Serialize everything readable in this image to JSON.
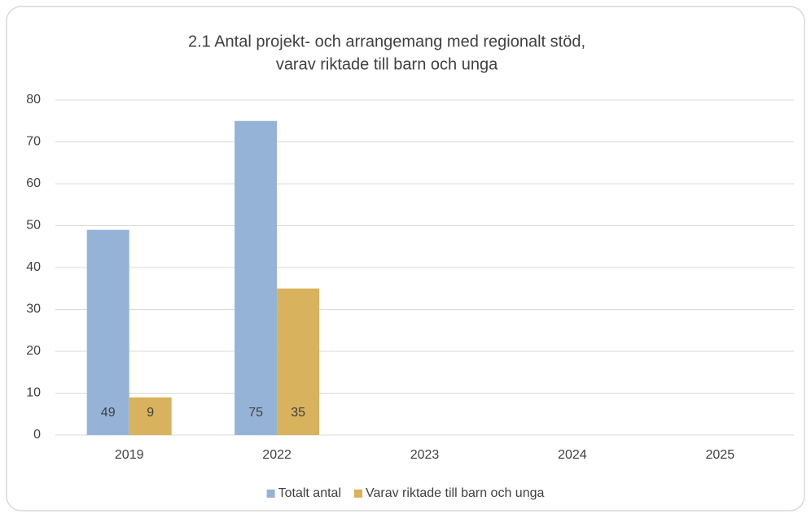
{
  "chart_data": {
    "type": "bar",
    "title": [
      "2.1 Antal projekt- och arrangemang med regionalt stöd,",
      "varav riktade till barn och unga"
    ],
    "categories": [
      "2019",
      "2022",
      "2023",
      "2024",
      "2025"
    ],
    "series": [
      {
        "name": "Totalt antal",
        "color": "#95b3d7",
        "values": [
          49,
          75,
          null,
          null,
          null
        ]
      },
      {
        "name": "Varav riktade till barn och unga",
        "color": "#d8b25c",
        "values": [
          9,
          35,
          null,
          null,
          null
        ]
      }
    ],
    "ylim": [
      0,
      80
    ],
    "yticks": [
      0,
      10,
      20,
      30,
      40,
      50,
      60,
      70,
      80
    ],
    "grid": true,
    "data_labels": true,
    "legend": "bottom"
  }
}
